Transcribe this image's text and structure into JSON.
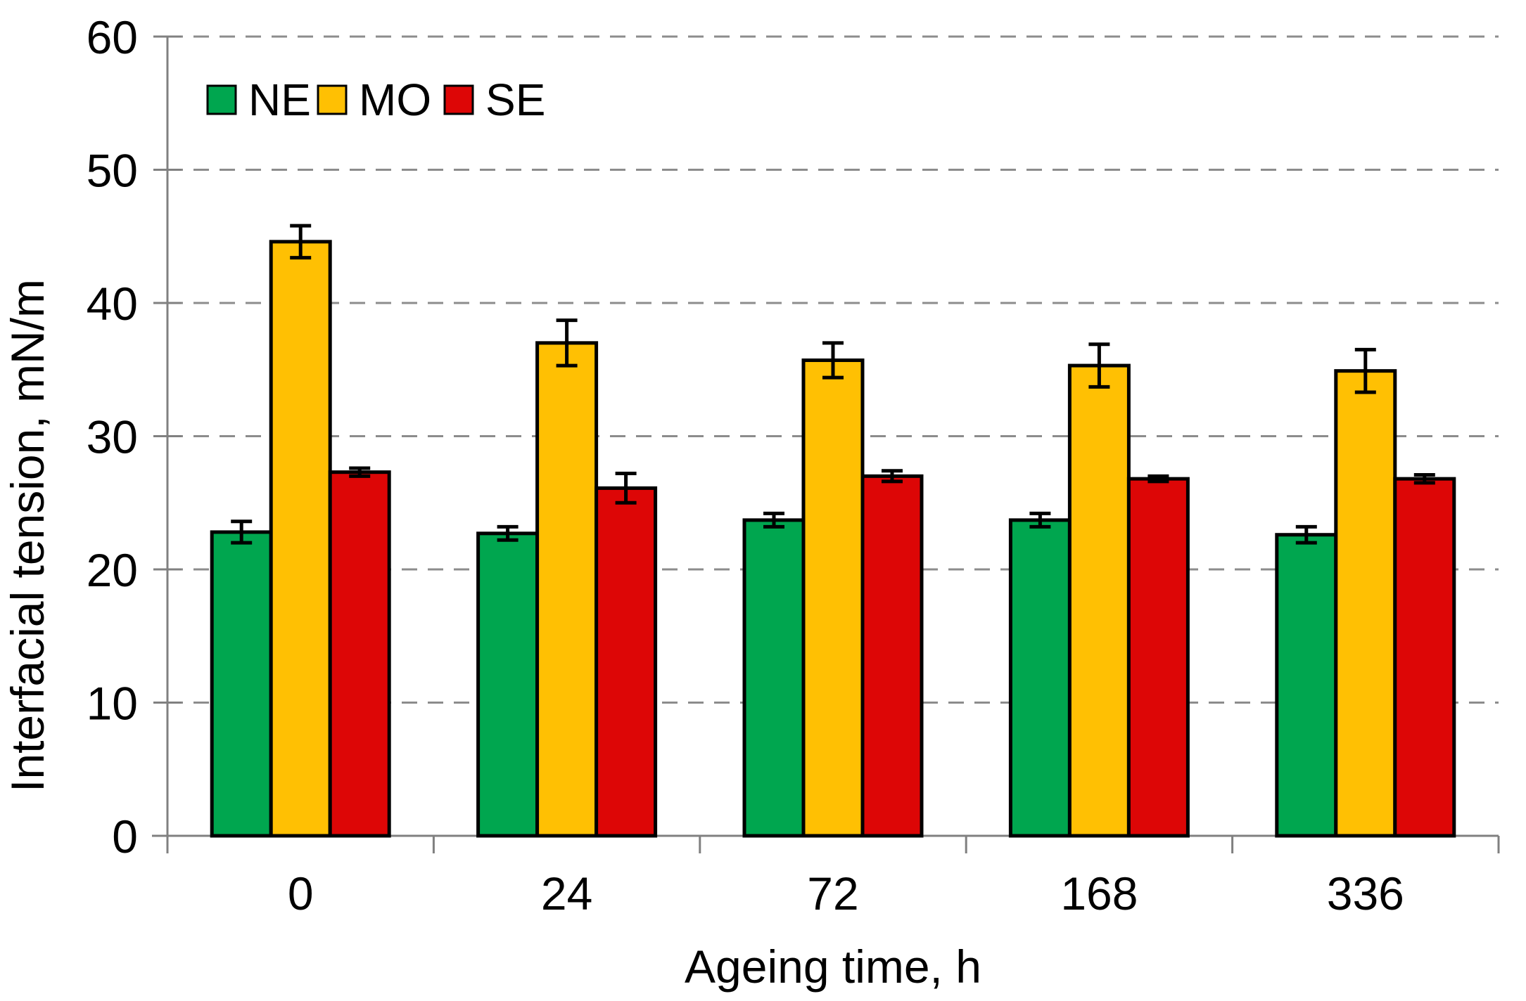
{
  "figure": {
    "background": "#FFFFFF",
    "kind": "grouped-bar-chart-with-error-bars"
  },
  "chart_data": {
    "type": "bar",
    "title": "",
    "xlabel": "Ageing time, h",
    "ylabel": "Interfacial tension, mN/m",
    "categories": [
      "0",
      "24",
      "72",
      "168",
      "336"
    ],
    "series": [
      {
        "name": "NE",
        "color": "#00A64F",
        "values": [
          22.8,
          22.7,
          23.7,
          23.7,
          22.6
        ],
        "errors": [
          0.8,
          0.5,
          0.5,
          0.5,
          0.6
        ]
      },
      {
        "name": "MO",
        "color": "#FFC003",
        "values": [
          44.6,
          37.0,
          35.7,
          35.3,
          34.9
        ],
        "errors": [
          1.2,
          1.7,
          1.3,
          1.6,
          1.6
        ]
      },
      {
        "name": "SE",
        "color": "#DD0606",
        "values": [
          27.3,
          26.1,
          27.0,
          26.8,
          26.8
        ],
        "errors": [
          0.3,
          1.1,
          0.4,
          0.2,
          0.3
        ]
      }
    ],
    "ylim": [
      0,
      60
    ],
    "yticks": [
      0,
      10,
      20,
      30,
      40,
      50,
      60
    ],
    "grid": "horizontal-dashed",
    "grid_color": "#8C8C8C",
    "axis_color": "#808080",
    "bar_edge_color": "#000000",
    "error_bar_color": "#000000",
    "legend_position": "top-left-inside",
    "legend_entries": [
      "NE",
      "MO",
      "SE"
    ]
  }
}
